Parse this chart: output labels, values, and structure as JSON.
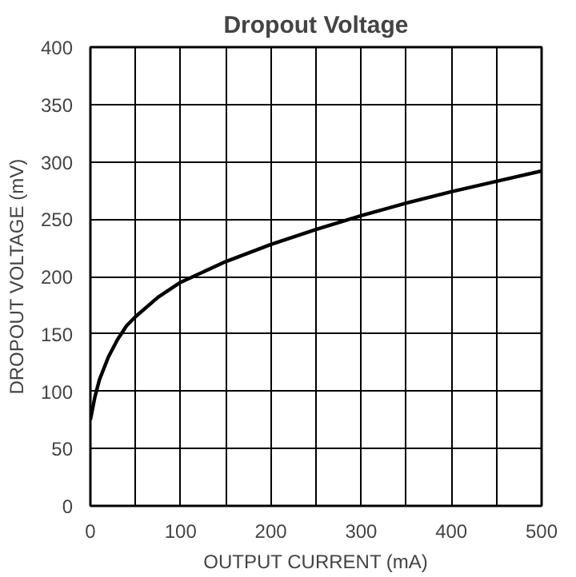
{
  "chart_data": {
    "type": "line",
    "title": "Dropout Voltage",
    "xlabel": "OUTPUT CURRENT (mA)",
    "ylabel": "DROPOUT VOLTAGE (mV)",
    "x": [
      0,
      5,
      10,
      20,
      30,
      40,
      50,
      75,
      100,
      150,
      200,
      250,
      300,
      350,
      400,
      450,
      500
    ],
    "series": [
      {
        "color": "#000000",
        "values": [
          75,
          95,
          110,
          130,
          145,
          157,
          165,
          182,
          195,
          213,
          228,
          241,
          253,
          264,
          274,
          283,
          292
        ]
      }
    ],
    "xlim": [
      0,
      500
    ],
    "ylim": [
      0,
      400
    ],
    "xticks": [
      0,
      {
        "value": 50,
        "label": null
      },
      100,
      {
        "value": 150,
        "label": null
      },
      200,
      {
        "value": 250,
        "label": null
      },
      300,
      {
        "value": 350,
        "label": null
      },
      400,
      {
        "value": 450,
        "label": null
      },
      500
    ],
    "yticks": [
      0,
      50,
      100,
      150,
      200,
      250,
      300,
      350,
      400
    ],
    "grid": true,
    "marker": "none",
    "line_style": "solid"
  }
}
